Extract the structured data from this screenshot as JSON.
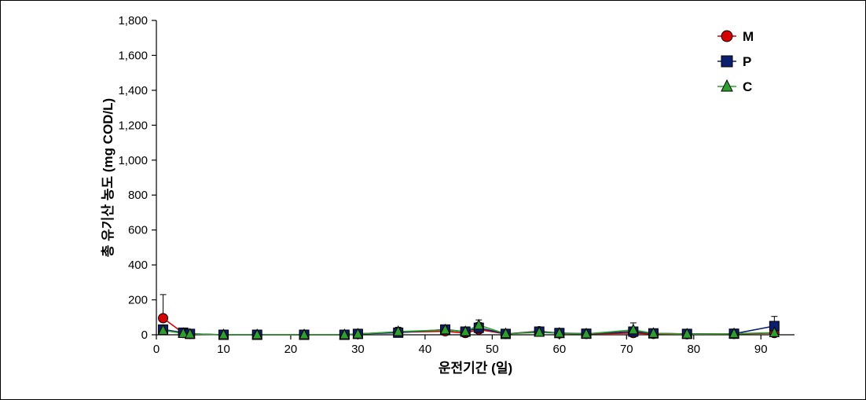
{
  "chart": {
    "type": "line-scatter",
    "background_color": "#ffffff",
    "plot_background": "#ffffff",
    "border_color": "#000000",
    "grid_color": "#ffffff",
    "axis_color": "#000000",
    "axis_line_width": 1.2,
    "tick_length": 6,
    "tick_width": 1.2,
    "xlabel": "운전기간 (일)",
    "ylabel": "총 유기산 농도 (mg COD/L)",
    "label_fontsize": 17,
    "label_fontweight": "bold",
    "tick_fontsize": 15,
    "xlim": [
      0,
      95
    ],
    "ylim": [
      0,
      1800
    ],
    "xtick_step": 10,
    "ytick_step": 200,
    "xticks": [
      0,
      10,
      20,
      30,
      40,
      50,
      60,
      70,
      80,
      90
    ],
    "yticks": [
      0,
      200,
      400,
      600,
      800,
      1000,
      1200,
      1400,
      1600,
      1800
    ],
    "ytick_labels": [
      "0",
      "200",
      "400",
      "600",
      "800",
      "1,000",
      "1,200",
      "1,400",
      "1,600",
      "1,800"
    ],
    "line_width": 1.6,
    "marker_size": 6,
    "marker_stroke": 1.2,
    "legend": {
      "position": "top-right",
      "fontsize": 17,
      "fontweight": "bold",
      "entries": [
        {
          "label": "M",
          "color": "#d80000",
          "marker": "circle"
        },
        {
          "label": "P",
          "color": "#0b1e70",
          "marker": "square"
        },
        {
          "label": "C",
          "color": "#2ca02c",
          "marker": "triangle"
        }
      ]
    },
    "series": {
      "x": [
        1,
        4,
        5,
        10,
        15,
        22,
        28,
        30,
        36,
        43,
        46,
        48,
        52,
        57,
        60,
        64,
        71,
        74,
        79,
        86,
        92
      ],
      "M": {
        "color": "#d80000",
        "marker": "circle",
        "y": [
          95,
          10,
          5,
          0,
          0,
          0,
          0,
          5,
          15,
          20,
          10,
          30,
          5,
          20,
          8,
          5,
          10,
          5,
          3,
          5,
          10
        ],
        "err": [
          135,
          10,
          10,
          10,
          10,
          10,
          10,
          12,
          20,
          20,
          15,
          25,
          12,
          15,
          12,
          10,
          15,
          12,
          10,
          12,
          25
        ]
      },
      "P": {
        "color": "#0b1e70",
        "marker": "square",
        "y": [
          30,
          12,
          5,
          0,
          0,
          0,
          0,
          5,
          12,
          30,
          18,
          40,
          5,
          18,
          10,
          6,
          18,
          8,
          5,
          6,
          50
        ],
        "err": [
          25,
          12,
          10,
          10,
          10,
          10,
          10,
          10,
          20,
          22,
          18,
          30,
          10,
          15,
          12,
          10,
          25,
          14,
          12,
          12,
          55
        ]
      },
      "C": {
        "color": "#2ca02c",
        "marker": "triangle",
        "y": [
          25,
          8,
          4,
          0,
          0,
          0,
          0,
          4,
          18,
          28,
          18,
          55,
          6,
          14,
          9,
          5,
          28,
          8,
          4,
          6,
          12
        ],
        "err": [
          22,
          10,
          10,
          10,
          10,
          10,
          10,
          12,
          25,
          22,
          20,
          30,
          12,
          14,
          12,
          10,
          40,
          14,
          12,
          12,
          28
        ]
      }
    }
  }
}
